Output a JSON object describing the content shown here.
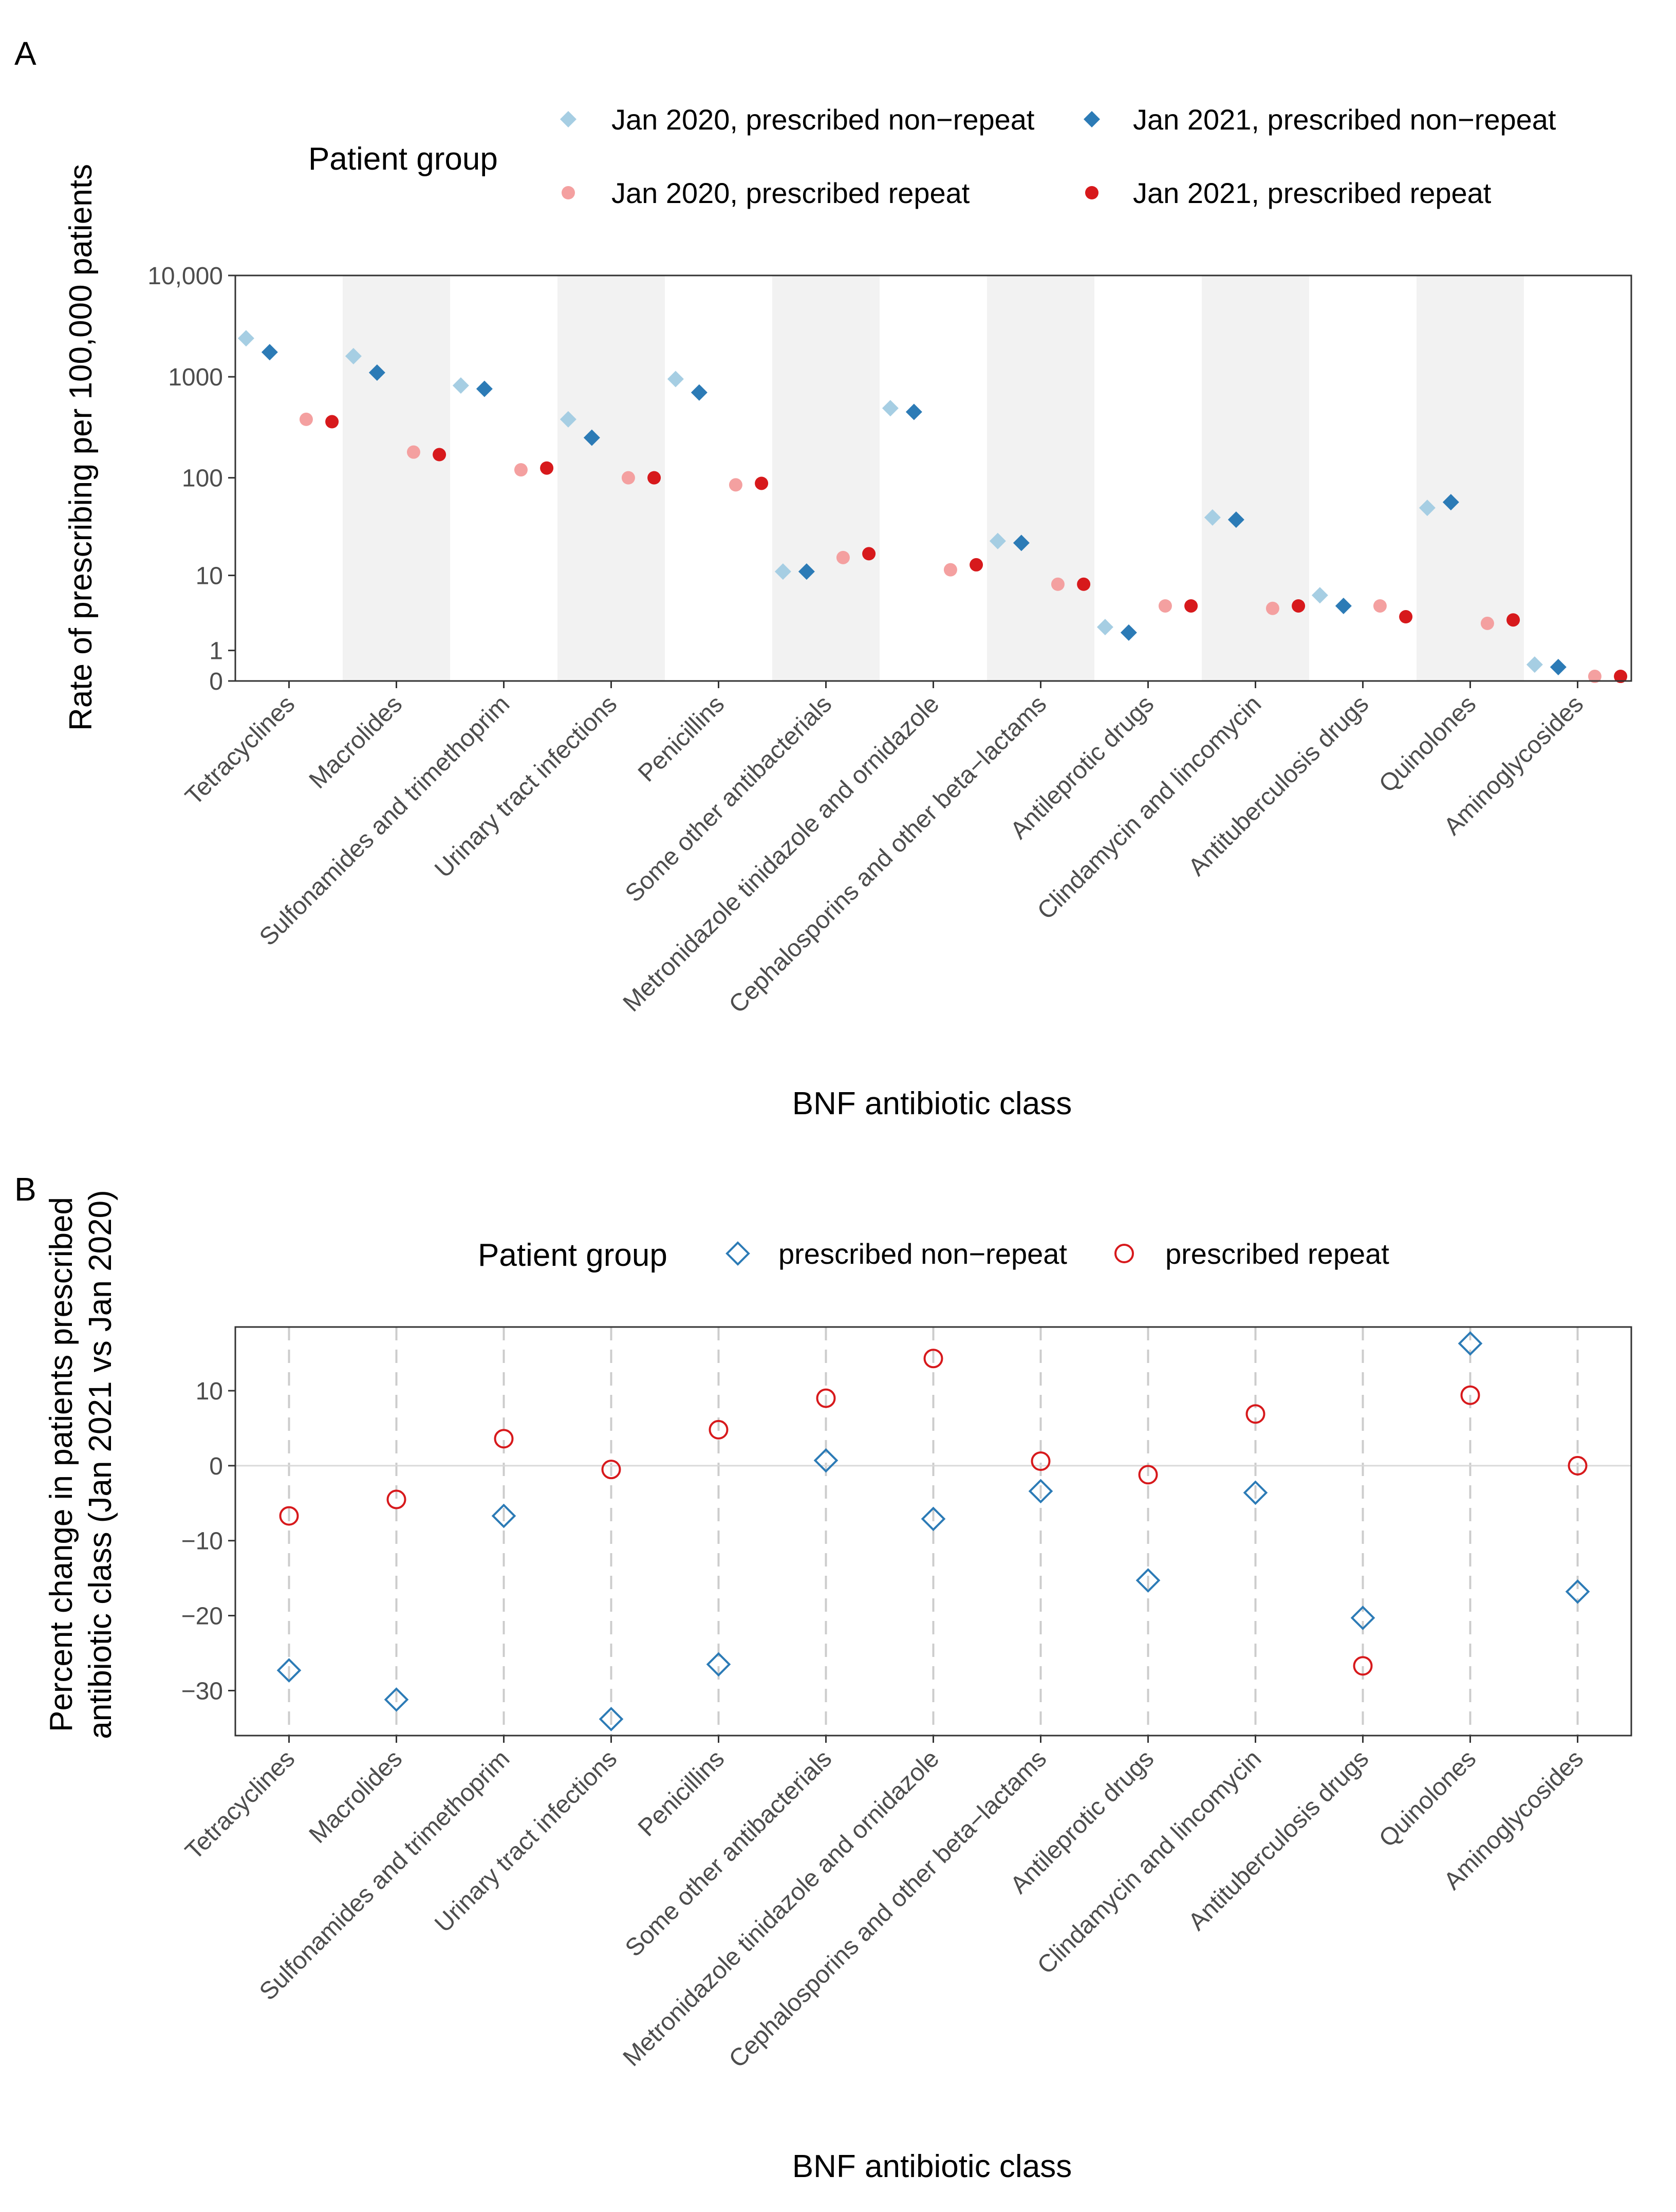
{
  "categories": [
    "Tetracyclines",
    "Macrolides",
    "Sulfonamides and trimethoprim",
    "Urinary tract infections",
    "Penicillins",
    "Some other antibacterials",
    "Metronidazole tinidazole and ornidazole",
    "Cephalosporins and other beta−lactams",
    "Antileprotic drugs",
    "Clindamycin and lincomycin",
    "Antituberculosis drugs",
    "Quinolones",
    "Aminoglycosides"
  ],
  "colors": {
    "nonrepeat_2020": "#a6cee3",
    "nonrepeat_2021": "#2c7bb6",
    "repeat_2020": "#f4a0a0",
    "repeat_2021": "#d7191c",
    "shade": "#f2f2f2",
    "grid_dash": "#cccccc",
    "zero_line": "#d9d9d9"
  },
  "chart_data": [
    {
      "panel": "A",
      "type": "scatter",
      "xlabel": "BNF antibiotic class",
      "ylabel": "Rate of prescribing per 100,000 patients",
      "yscale": "log10(y+1)",
      "ylim": [
        0,
        10000
      ],
      "yticks": [
        {
          "value": 0,
          "label": "0"
        },
        {
          "value": 1,
          "label": "1"
        },
        {
          "value": 10,
          "label": "10"
        },
        {
          "value": 100,
          "label": "100"
        },
        {
          "value": 1000,
          "label": "1000"
        },
        {
          "value": 10000,
          "label": "10,000"
        }
      ],
      "legend": {
        "title": "Patient group",
        "position": "top"
      },
      "series": [
        {
          "name": "Jan 2020, prescribed non−repeat",
          "key": "nonrepeat_2020",
          "shape": "diamond",
          "values": [
            2400,
            1600,
            820,
            380,
            950,
            11,
            490,
            23,
            2.4,
            40,
            6,
            50,
            0.45
          ]
        },
        {
          "name": "Jan 2021, prescribed non−repeat",
          "key": "nonrepeat_2021",
          "shape": "diamond",
          "values": [
            1750,
            1100,
            760,
            250,
            700,
            11,
            450,
            22,
            2.0,
            38,
            4.5,
            57,
            0.37
          ]
        },
        {
          "name": "Jan 2020, prescribed repeat",
          "key": "repeat_2020",
          "shape": "circle",
          "values": [
            380,
            180,
            120,
            100,
            85,
            15.5,
            11.5,
            8,
            4.5,
            4.2,
            4.5,
            2.7,
            0.11
          ]
        },
        {
          "name": "Jan 2021, prescribed repeat",
          "key": "repeat_2021",
          "shape": "circle",
          "values": [
            360,
            170,
            125,
            100,
            88,
            17,
            13,
            8,
            4.5,
            4.5,
            3.3,
            3.0,
            0.11
          ]
        }
      ]
    },
    {
      "panel": "B",
      "type": "scatter",
      "xlabel": "BNF antibiotic class",
      "ylabel_lines": [
        "Percent change in patients prescribed",
        "antibiotic class (Jan 2021 vs Jan 2020)"
      ],
      "ylim": [
        -36,
        18.5
      ],
      "yticks": [
        {
          "value": 10,
          "label": "10"
        },
        {
          "value": 0,
          "label": "0"
        },
        {
          "value": -10,
          "label": "−10"
        },
        {
          "value": -20,
          "label": "−20"
        },
        {
          "value": -30,
          "label": "−30"
        }
      ],
      "legend": {
        "title": "Patient group",
        "position": "top"
      },
      "series": [
        {
          "name": "prescribed non−repeat",
          "key": "nonrepeat_2021",
          "shape": "open-diamond",
          "values": [
            -27.3,
            -31.2,
            -6.7,
            -33.8,
            -26.5,
            0.7,
            -7.1,
            -3.4,
            -15.3,
            -3.6,
            -20.3,
            16.3,
            -16.8
          ]
        },
        {
          "name": "prescribed repeat",
          "key": "repeat_2021",
          "shape": "open-circle",
          "values": [
            -6.7,
            -4.5,
            3.6,
            -0.5,
            4.8,
            9.0,
            14.3,
            0.6,
            -1.2,
            6.9,
            -26.7,
            9.4,
            0.0
          ]
        }
      ]
    }
  ],
  "panel_labels": [
    "A",
    "B"
  ]
}
